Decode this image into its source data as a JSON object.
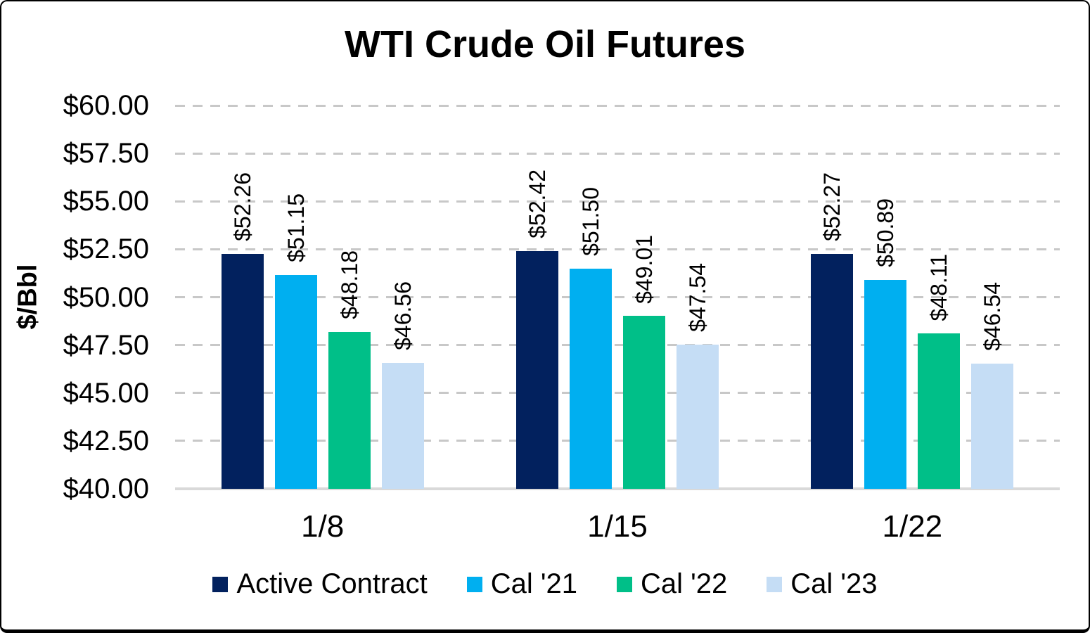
{
  "chart_data": {
    "type": "bar",
    "title": "WTI Crude Oil Futures",
    "ylabel": "$/Bbl",
    "categories": [
      "1/8",
      "1/15",
      "1/22"
    ],
    "series": [
      {
        "name": "Active Contract",
        "color": "#02215E",
        "values": [
          52.26,
          52.42,
          52.27
        ],
        "data_labels": [
          "$52.26",
          "$52.42",
          "$52.27"
        ]
      },
      {
        "name": "Cal '21",
        "color": "#00AFF0",
        "values": [
          51.15,
          51.5,
          50.89
        ],
        "data_labels": [
          "$51.15",
          "$51.50",
          "$50.89"
        ]
      },
      {
        "name": "Cal '22",
        "color": "#00BF88",
        "values": [
          48.18,
          49.01,
          48.11
        ],
        "data_labels": [
          "$48.18",
          "$49.01",
          "$48.11"
        ]
      },
      {
        "name": "Cal '23",
        "color": "#C5DDF5",
        "values": [
          46.56,
          47.54,
          46.54
        ],
        "data_labels": [
          "$46.56",
          "$47.54",
          "$46.54"
        ]
      }
    ],
    "ylim": [
      40,
      60
    ],
    "ytick_step": 2.5,
    "ytick_labels": [
      "$40.00",
      "$42.50",
      "$45.00",
      "$47.50",
      "$50.00",
      "$52.50",
      "$55.00",
      "$57.50",
      "$60.00"
    ],
    "grid": "horizontal-dashed",
    "legend_position": "bottom"
  },
  "style": {
    "background": "#FFFFFF",
    "frame_border": "#000000",
    "gridline_color": "#C8C8C8",
    "axis_line_color": "#D9D9D9",
    "text_color": "#000000"
  }
}
